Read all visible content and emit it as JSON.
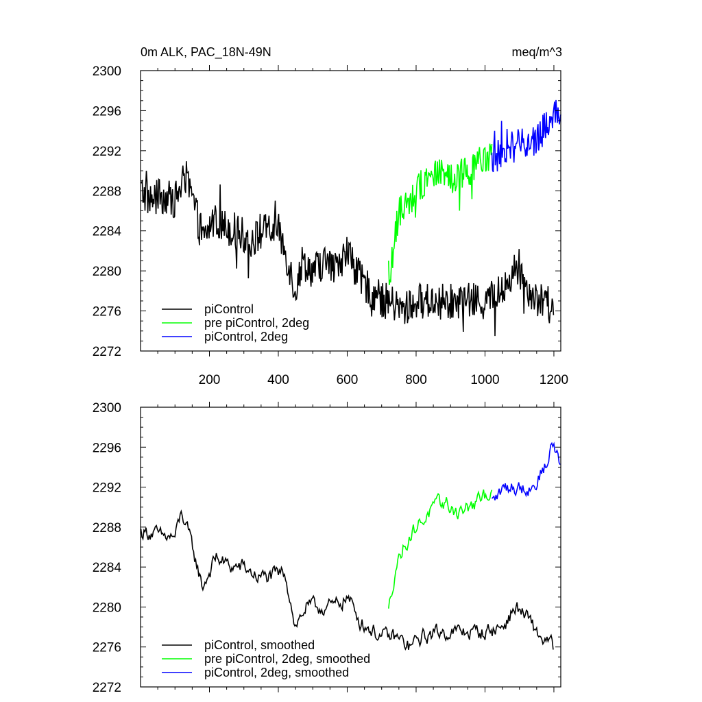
{
  "chart_data": [
    {
      "type": "line",
      "title": "0m ALK, PAC_18N-49N",
      "units": "meq/m^3",
      "xlim": [
        0,
        1220
      ],
      "ylim": [
        2272,
        2300
      ],
      "xticks": [
        200,
        400,
        600,
        800,
        1000,
        1200
      ],
      "yticks": [
        2272,
        2276,
        2280,
        2284,
        2288,
        2292,
        2296,
        2300
      ],
      "xtick_labels": [
        "200",
        "400",
        "600",
        "800",
        "1000",
        "1200"
      ],
      "ytick_labels": [
        "2272",
        "2276",
        "2280",
        "2284",
        "2288",
        "2292",
        "2296",
        "2300"
      ],
      "legend_position": "bottom-left",
      "series": [
        {
          "name": "piControl",
          "color": "#000000",
          "x_range": [
            1,
            1200
          ],
          "anchors": [
            [
              1,
              2288
            ],
            [
              30,
              2287
            ],
            [
              60,
              2287.5
            ],
            [
              100,
              2287
            ],
            [
              130,
              2289.5
            ],
            [
              160,
              2286
            ],
            [
              180,
              2283
            ],
            [
              210,
              2285
            ],
            [
              240,
              2284.5
            ],
            [
              280,
              2284
            ],
            [
              320,
              2283
            ],
            [
              360,
              2284
            ],
            [
              400,
              2284
            ],
            [
              420,
              2282
            ],
            [
              450,
              2278
            ],
            [
              470,
              2281
            ],
            [
              500,
              2280
            ],
            [
              540,
              2281
            ],
            [
              560,
              2280
            ],
            [
              600,
              2282
            ],
            [
              640,
              2279
            ],
            [
              700,
              2277
            ],
            [
              720,
              2277
            ],
            [
              760,
              2276
            ],
            [
              800,
              2277
            ],
            [
              850,
              2277
            ],
            [
              900,
              2277
            ],
            [
              950,
              2277
            ],
            [
              1000,
              2277
            ],
            [
              1060,
              2278
            ],
            [
              1080,
              2280
            ],
            [
              1100,
              2280
            ],
            [
              1130,
              2278
            ],
            [
              1160,
              2277
            ],
            [
              1200,
              2276
            ]
          ],
          "noise": 1.8
        },
        {
          "name": "pre piControl, 2deg",
          "color": "#00ff00",
          "x_range": [
            720,
            1020
          ],
          "anchors": [
            [
              720,
              2278
            ],
            [
              730,
              2281
            ],
            [
              750,
              2286
            ],
            [
              780,
              2287
            ],
            [
              820,
              2289
            ],
            [
              860,
              2290
            ],
            [
              900,
              2289
            ],
            [
              950,
              2290
            ],
            [
              1000,
              2291
            ],
            [
              1020,
              2291.5
            ]
          ],
          "noise": 1.6
        },
        {
          "name": "piControl, 2deg",
          "color": "#0000ff",
          "x_range": [
            1020,
            1220
          ],
          "anchors": [
            [
              1020,
              2291
            ],
            [
              1060,
              2292.5
            ],
            [
              1100,
              2292.5
            ],
            [
              1150,
              2293
            ],
            [
              1180,
              2295
            ],
            [
              1200,
              2296
            ],
            [
              1220,
              2294
            ]
          ],
          "noise": 1.7
        }
      ]
    },
    {
      "type": "line",
      "title": "",
      "xlim": [
        0,
        1220
      ],
      "ylim": [
        2272,
        2300
      ],
      "xticks": [
        200,
        400,
        600,
        800,
        1000,
        1200
      ],
      "yticks": [
        2272,
        2276,
        2280,
        2284,
        2288,
        2292,
        2296,
        2300
      ],
      "ytick_labels": [
        "2272",
        "2276",
        "2280",
        "2284",
        "2288",
        "2292",
        "2296",
        "2300"
      ],
      "legend_position": "bottom-left",
      "series": [
        {
          "name": "piControl, smoothed",
          "color": "#000000",
          "x_range": [
            1,
            1200
          ],
          "anchors": [
            [
              1,
              2287.5
            ],
            [
              30,
              2287.5
            ],
            [
              60,
              2287
            ],
            [
              100,
              2287
            ],
            [
              120,
              2289.5
            ],
            [
              150,
              2286
            ],
            [
              180,
              2282
            ],
            [
              220,
              2285
            ],
            [
              260,
              2284
            ],
            [
              300,
              2284
            ],
            [
              340,
              2283
            ],
            [
              380,
              2283
            ],
            [
              420,
              2283.5
            ],
            [
              450,
              2278
            ],
            [
              480,
              2280
            ],
            [
              520,
              2280
            ],
            [
              560,
              2280
            ],
            [
              600,
              2281
            ],
            [
              640,
              2278.5
            ],
            [
              700,
              2277
            ],
            [
              740,
              2277
            ],
            [
              780,
              2276
            ],
            [
              820,
              2277
            ],
            [
              860,
              2277.5
            ],
            [
              900,
              2277.5
            ],
            [
              960,
              2277.5
            ],
            [
              1000,
              2277.5
            ],
            [
              1050,
              2278
            ],
            [
              1090,
              2280
            ],
            [
              1120,
              2279
            ],
            [
              1160,
              2277
            ],
            [
              1200,
              2276
            ]
          ],
          "noise": 0.9
        },
        {
          "name": "pre piControl, 2deg, smoothed",
          "color": "#00ff00",
          "x_range": [
            720,
            1020
          ],
          "anchors": [
            [
              720,
              2279.5
            ],
            [
              740,
              2284
            ],
            [
              770,
              2286.5
            ],
            [
              800,
              2288
            ],
            [
              840,
              2289.5
            ],
            [
              880,
              2290.5
            ],
            [
              920,
              2289.5
            ],
            [
              960,
              2290
            ],
            [
              1000,
              2291
            ],
            [
              1020,
              2292
            ]
          ],
          "noise": 0.9
        },
        {
          "name": "piControl, 2deg, smoothed",
          "color": "#0000ff",
          "x_range": [
            1020,
            1220
          ],
          "anchors": [
            [
              1020,
              2290.5
            ],
            [
              1060,
              2292
            ],
            [
              1100,
              2292
            ],
            [
              1140,
              2292
            ],
            [
              1180,
              2294.5
            ],
            [
              1200,
              2296.5
            ],
            [
              1220,
              2294
            ]
          ],
          "noise": 0.9
        }
      ]
    }
  ]
}
